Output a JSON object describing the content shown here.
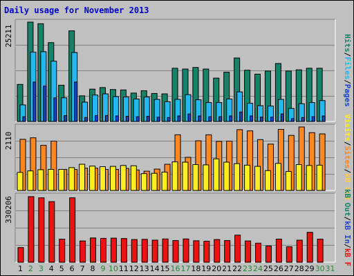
{
  "title": "Daily usage for November 2013",
  "colors": {
    "hits": "#14836a",
    "files": "#24b8f0",
    "pages": "#1444cc",
    "visits": "#ffee22",
    "sites": "#ff8822",
    "kbout": "#ffcc44",
    "kbin": "#2244cc",
    "kbf": "#ee1111",
    "weekday_label": "#000000",
    "weekend_label": "#228833"
  },
  "chart_data": [
    {
      "type": "bar",
      "panel": "hits-files-pages",
      "ymax_label": "25211",
      "ylim": [
        0,
        25211
      ],
      "axis_labels": [
        {
          "text": "Pages",
          "color": "#1444cc"
        },
        {
          "text": "/",
          "color": "#000000"
        },
        {
          "text": "Files",
          "color": "#24b8f0"
        },
        {
          "text": "/",
          "color": "#000000"
        },
        {
          "text": "Hits",
          "color": "#14836a"
        }
      ],
      "categories": [
        "1",
        "2",
        "3",
        "4",
        "5",
        "6",
        "7",
        "8",
        "9",
        "10",
        "11",
        "12",
        "13",
        "14",
        "15",
        "16",
        "17",
        "18",
        "19",
        "20",
        "21",
        "22",
        "23",
        "24",
        "25",
        "26",
        "27",
        "28",
        "29",
        "30",
        "31"
      ],
      "series": [
        {
          "key": "hits",
          "values": [
            9400,
            25211,
            24800,
            20000,
            9200,
            23000,
            6500,
            8200,
            8600,
            8100,
            8000,
            7200,
            7800,
            7100,
            7000,
            13500,
            13300,
            13700,
            13300,
            11000,
            12500,
            16100,
            13000,
            12000,
            12800,
            14700,
            12800,
            13100,
            13500,
            13500,
            0
          ]
        },
        {
          "key": "files",
          "values": [
            4200,
            17600,
            17700,
            15300,
            6000,
            17500,
            4900,
            6700,
            7000,
            6300,
            6200,
            5700,
            6200,
            5600,
            5000,
            5600,
            6800,
            5500,
            4800,
            4800,
            5700,
            7500,
            4600,
            4000,
            3900,
            5600,
            3300,
            4500,
            4800,
            5300,
            0
          ]
        },
        {
          "key": "pages",
          "values": [
            1200,
            10000,
            9000,
            6000,
            1500,
            10000,
            1000,
            1500,
            1500,
            1400,
            1300,
            1200,
            1300,
            1100,
            1000,
            1400,
            1900,
            1400,
            1200,
            1200,
            1400,
            2400,
            1400,
            1100,
            1100,
            1900,
            700,
            1000,
            1200,
            1400,
            0
          ]
        }
      ]
    },
    {
      "type": "bar",
      "panel": "visits-sites-kbout",
      "ymax_label": "2110",
      "ylim": [
        0,
        2110
      ],
      "axis_labels": [
        {
          "text": "kB Out",
          "color": "#ffcc44"
        },
        {
          "text": "/",
          "color": "#000000"
        },
        {
          "text": "Sites",
          "color": "#ff8822"
        },
        {
          "text": "/",
          "color": "#000000"
        },
        {
          "text": "Visits",
          "color": "#ffee22"
        }
      ],
      "categories": [
        "1",
        "2",
        "3",
        "4",
        "5",
        "6",
        "7",
        "8",
        "9",
        "10",
        "11",
        "12",
        "13",
        "14",
        "15",
        "16",
        "17",
        "18",
        "19",
        "20",
        "21",
        "22",
        "23",
        "24",
        "25",
        "26",
        "27",
        "28",
        "29",
        "30",
        "31"
      ],
      "series": [
        {
          "key": "sites",
          "values": [
            1700,
            1750,
            1500,
            1640,
            700,
            700,
            740,
            740,
            700,
            700,
            730,
            680,
            640,
            710,
            870,
            1850,
            1100,
            1650,
            1850,
            1630,
            1640,
            2020,
            1980,
            1690,
            1540,
            2030,
            1830,
            2110,
            1920,
            1880,
            0
          ]
        },
        {
          "key": "visits",
          "values": [
            600,
            650,
            690,
            700,
            700,
            760,
            870,
            810,
            790,
            800,
            830,
            820,
            560,
            570,
            610,
            950,
            940,
            860,
            850,
            1050,
            940,
            890,
            840,
            800,
            660,
            900,
            630,
            860,
            830,
            840,
            0
          ]
        },
        {
          "key": "kbout",
          "values": [
            200,
            100,
            150,
            120,
            60,
            60,
            80,
            80,
            70,
            80,
            80,
            70,
            60,
            70,
            90,
            200,
            110,
            160,
            150,
            170,
            170,
            200,
            160,
            150,
            140,
            200,
            150,
            180,
            170,
            160,
            0
          ]
        }
      ]
    },
    {
      "type": "bar",
      "panel": "kbf-kbin-kbout",
      "ymax_label": "330206",
      "ylim": [
        0,
        330206
      ],
      "axis_labels": [
        {
          "text": "kB F",
          "color": "#ee1111"
        },
        {
          "text": "/",
          "color": "#000000"
        },
        {
          "text": "kB In",
          "color": "#2244cc"
        },
        {
          "text": "/",
          "color": "#000000"
        },
        {
          "text": "kB Out",
          "color": "#14836a"
        }
      ],
      "categories": [
        "1",
        "2",
        "3",
        "4",
        "5",
        "6",
        "7",
        "8",
        "9",
        "10",
        "11",
        "12",
        "13",
        "14",
        "15",
        "16",
        "17",
        "18",
        "19",
        "20",
        "21",
        "22",
        "23",
        "24",
        "25",
        "26",
        "27",
        "28",
        "29",
        "30",
        "31"
      ],
      "series": [
        {
          "key": "kbf",
          "values": [
            73000,
            327000,
            321000,
            302000,
            115000,
            321000,
            106000,
            121000,
            119000,
            120000,
            118000,
            113000,
            114000,
            110000,
            116000,
            108000,
            116000,
            107000,
            105000,
            113000,
            108000,
            135000,
            106000,
            95000,
            81000,
            115000,
            77000,
            110000,
            149000,
            115000,
            0
          ]
        }
      ]
    }
  ],
  "day_labels": [
    {
      "text": "1",
      "weekend": false
    },
    {
      "text": "2",
      "weekend": true
    },
    {
      "text": "3",
      "weekend": true
    },
    {
      "text": "4",
      "weekend": false
    },
    {
      "text": "5",
      "weekend": false
    },
    {
      "text": "6",
      "weekend": false
    },
    {
      "text": "7",
      "weekend": false
    },
    {
      "text": "8",
      "weekend": false
    },
    {
      "text": "9",
      "weekend": true
    },
    {
      "text": "10",
      "weekend": true
    },
    {
      "text": "11",
      "weekend": false
    },
    {
      "text": "12",
      "weekend": false
    },
    {
      "text": "13",
      "weekend": false
    },
    {
      "text": "14",
      "weekend": false
    },
    {
      "text": "15",
      "weekend": false
    },
    {
      "text": "16",
      "weekend": true
    },
    {
      "text": "17",
      "weekend": true
    },
    {
      "text": "18",
      "weekend": false
    },
    {
      "text": "19",
      "weekend": false
    },
    {
      "text": "20",
      "weekend": false
    },
    {
      "text": "21",
      "weekend": false
    },
    {
      "text": "22",
      "weekend": false
    },
    {
      "text": "23",
      "weekend": true
    },
    {
      "text": "24",
      "weekend": true
    },
    {
      "text": "25",
      "weekend": false
    },
    {
      "text": "26",
      "weekend": false
    },
    {
      "text": "27",
      "weekend": false
    },
    {
      "text": "28",
      "weekend": false
    },
    {
      "text": "29",
      "weekend": false
    },
    {
      "text": "30",
      "weekend": true
    },
    {
      "text": "31",
      "weekend": true
    }
  ]
}
